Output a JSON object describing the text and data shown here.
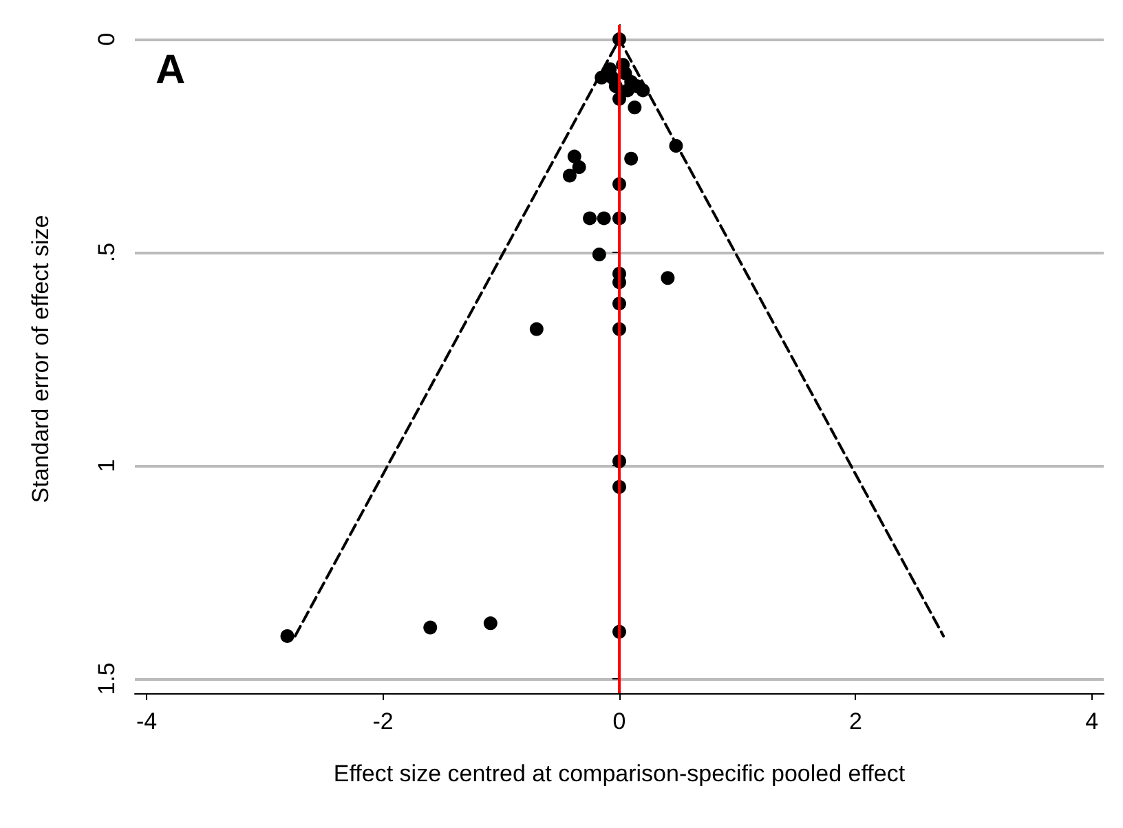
{
  "chart_data": {
    "type": "scatter",
    "xlabel": "Effect size centred at comparison-specific pooled effect",
    "ylabel": "Standard error of effect size",
    "annotations": [
      "A"
    ],
    "xlim": [
      -4.1,
      4.1
    ],
    "xticks": [
      -4,
      -2,
      0,
      2,
      4
    ],
    "ylim": [
      1.534,
      -0.034
    ],
    "yticks": [
      0,
      {
        "value": 0.5,
        "label": ".5"
      },
      1,
      1.5
    ],
    "grid": "y",
    "ref_lines": [
      {
        "axis": "x",
        "value": 0,
        "color": "#ff0000",
        "line_style": "solid"
      }
    ],
    "series": [
      {
        "color": "#000000",
        "marker": "circle",
        "x": [
          0,
          0.03,
          -0.08,
          0.05,
          -0.15,
          -0.06,
          0.1,
          -0.03,
          0.07,
          0.15,
          0.2,
          0,
          0.13,
          0.48,
          -0.38,
          -0.34,
          -0.42,
          0.1,
          0,
          -0.25,
          -0.13,
          0,
          -0.17,
          0,
          0,
          0.41,
          0,
          -0.7,
          0,
          0,
          0,
          -2.81,
          -1.6,
          -1.09,
          0
        ],
        "values": [
          0,
          0.06,
          0.07,
          0.08,
          0.09,
          0.09,
          0.1,
          0.11,
          0.12,
          0.11,
          0.12,
          0.14,
          0.16,
          0.25,
          0.275,
          0.3,
          0.32,
          0.28,
          0.34,
          0.42,
          0.42,
          0.42,
          0.505,
          0.55,
          0.57,
          0.56,
          0.62,
          0.68,
          0.68,
          0.99,
          1.05,
          1.4,
          1.38,
          1.37,
          1.39
        ]
      },
      {
        "type": "line",
        "color": "#000000",
        "marker": "none",
        "line_style": "dashed",
        "x": [
          -2.744,
          0,
          2.744
        ],
        "values": [
          1.4,
          0,
          1.4
        ]
      }
    ]
  }
}
